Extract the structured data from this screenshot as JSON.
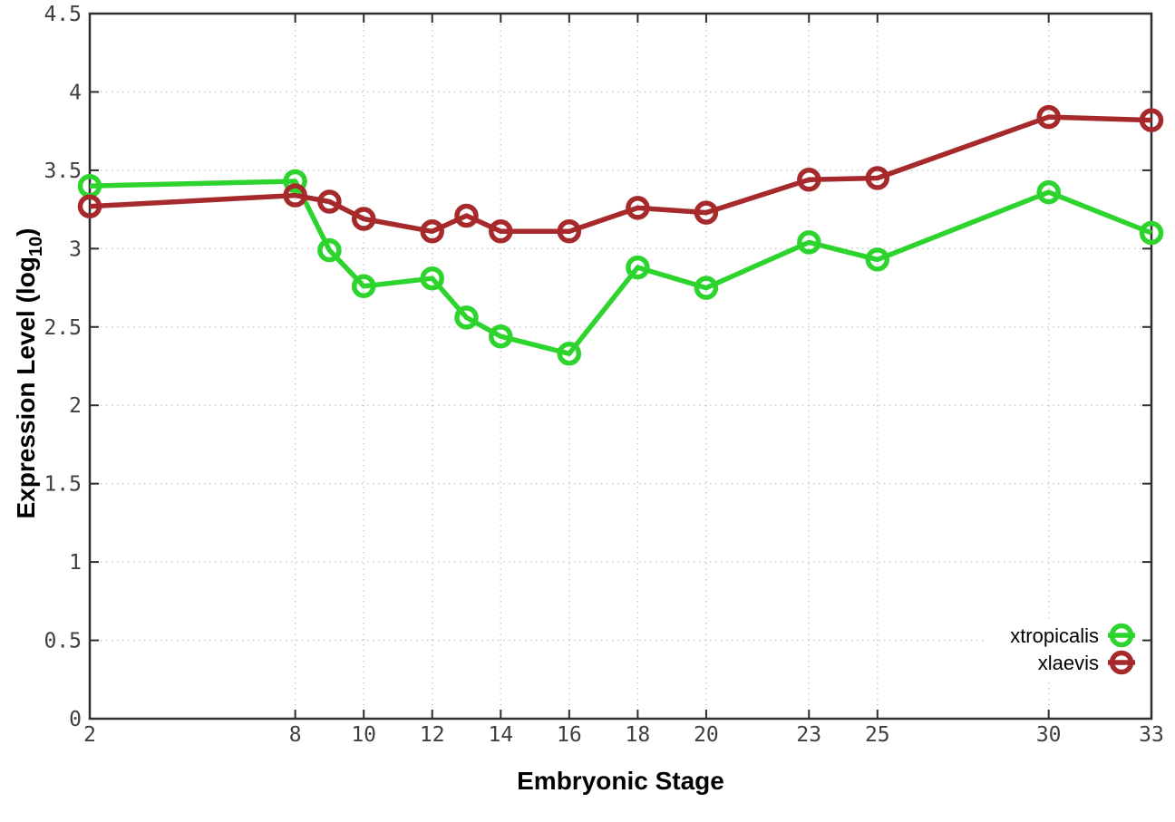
{
  "chart_data": {
    "type": "line",
    "title": "",
    "xlabel": "Embryonic Stage",
    "ylabel": "Expression Level (log10)",
    "ylabel_parts": {
      "main": "Expression Level (log",
      "sub": "10",
      "end": ")"
    },
    "x": [
      2,
      8,
      9,
      10,
      12,
      13,
      14,
      16,
      18,
      20,
      23,
      25,
      30,
      33
    ],
    "series": [
      {
        "name": "xtropicalis",
        "color": "#2ed42e",
        "values": [
          3.4,
          3.43,
          2.99,
          2.76,
          2.81,
          2.56,
          2.44,
          2.33,
          2.88,
          2.75,
          3.04,
          2.93,
          3.36,
          3.1
        ]
      },
      {
        "name": "xlaevis",
        "color": "#a6292b",
        "values": [
          3.27,
          3.34,
          3.3,
          3.19,
          3.11,
          3.21,
          3.11,
          3.11,
          3.26,
          3.23,
          3.44,
          3.45,
          3.84,
          3.82
        ]
      }
    ],
    "xlim": [
      2,
      33
    ],
    "ylim": [
      0,
      4.5
    ],
    "x_ticks": {
      "values": [
        2,
        8,
        10,
        12,
        14,
        16,
        18,
        20,
        23,
        25,
        30,
        33
      ],
      "labels": [
        "2",
        "8",
        "10",
        "12",
        "14",
        "16",
        "18",
        "20",
        "23",
        "25",
        "30",
        "33"
      ]
    },
    "y_ticks": {
      "values": [
        0,
        0.5,
        1,
        1.5,
        2,
        2.5,
        3,
        3.5,
        4,
        4.5
      ],
      "labels": [
        "0",
        "0.5",
        "1",
        "1.5",
        "2",
        "2.5",
        "3",
        "3.5",
        "4",
        "4.5"
      ]
    },
    "grid": true,
    "legend": {
      "position": "inside-bottom-right",
      "entries": [
        "xtropicalis",
        "xlaevis"
      ]
    }
  },
  "style": {
    "background": "#ffffff",
    "border_color": "#2e2e2e",
    "grid_color": "#c8c8c8",
    "tick_label_color": "#3f3f3f",
    "text_color": "#000000"
  }
}
